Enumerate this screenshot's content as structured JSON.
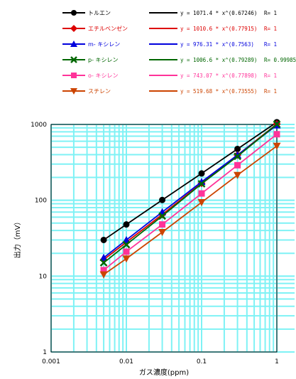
{
  "chart_data": {
    "type": "line",
    "xlabel": "ガス濃度(ppm)",
    "ylabel": "出力（mV）",
    "xscale": "log",
    "yscale": "log",
    "xlim": [
      0.001,
      1
    ],
    "ylim": [
      1,
      1000
    ],
    "x_ticks": [
      "0.001",
      "0.01",
      "0.1",
      "1"
    ],
    "y_ticks": [
      "1",
      "10",
      "100",
      "1000"
    ],
    "grid": true,
    "legend_position": "top",
    "x": [
      0.005,
      0.01,
      0.03,
      0.1,
      0.3,
      1
    ],
    "series": [
      {
        "name": "トルエン",
        "color": "#000000",
        "marker": "circle",
        "fit": "y = 1071.4 * x^(0.67246)",
        "r": "R= 1",
        "values": [
          30,
          48,
          101,
          226,
          475,
          1071
        ]
      },
      {
        "name": "エチルベンゼン",
        "color": "#dd0000",
        "marker": "diamond",
        "fit": "y = 1010.6 * x^(0.77915)",
        "r": "R= 1",
        "values": [
          16.5,
          28,
          65,
          168,
          395,
          1011
        ]
      },
      {
        "name": "m- キシレン",
        "color": "#0000dd",
        "marker": "triangle-up",
        "fit": "y = 976.31 * x^(0.7563)",
        "r": "R= 1",
        "values": [
          17.5,
          30,
          70,
          175,
          395,
          976
        ]
      },
      {
        "name": "p- キシレン",
        "color": "#006600",
        "marker": "x",
        "fit": "y = 1006.6 * x^(0.79289)",
        "r": "R= 0.99985",
        "values": [
          15,
          26,
          62,
          165,
          380,
          1007
        ]
      },
      {
        "name": "o- キシレン",
        "color": "#ff3399",
        "marker": "square",
        "fit": "y = 743.07 * x^(0.77898)",
        "r": "R= 1",
        "values": [
          12,
          21,
          48,
          123,
          290,
          743
        ]
      },
      {
        "name": "スチレン",
        "color": "#cc4400",
        "marker": "triangle-down",
        "fit": "y = 519.68 * x^(0.73555)",
        "r": "R= 1",
        "values": [
          10.5,
          17,
          38,
          94,
          215,
          520
        ]
      }
    ]
  }
}
